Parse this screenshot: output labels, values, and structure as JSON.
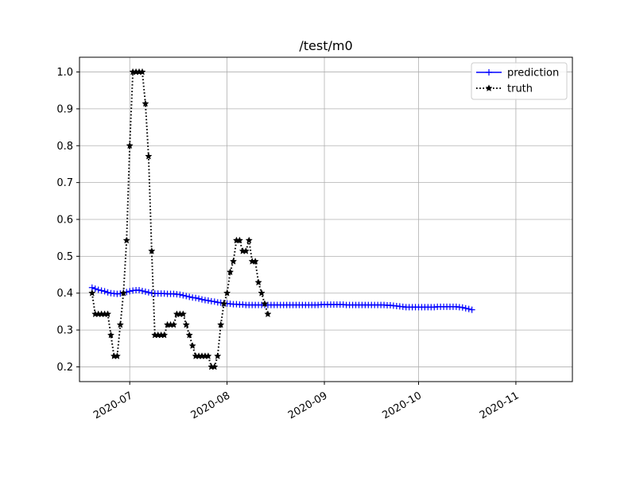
{
  "chart_data": {
    "type": "line",
    "title": "/test/m0",
    "xlabel": "",
    "ylabel": "",
    "grid": true,
    "legend_position": "top-right",
    "x_ticks": [
      "2020-07",
      "2020-08",
      "2020-09",
      "2020-10",
      "2020-11"
    ],
    "y_ticks": [
      "0.2",
      "0.3",
      "0.4",
      "0.5",
      "0.6",
      "0.7",
      "0.8",
      "0.9",
      "1.0"
    ],
    "xlim": [
      "2020-06-15",
      "2020-11-19"
    ],
    "ylim": [
      0.16,
      1.04
    ],
    "series": [
      {
        "name": "prediction",
        "color": "#0000ff",
        "linestyle": "solid",
        "marker": "plus",
        "x_start": "2020-06-19",
        "x_step_days": 1,
        "values": [
          0.415,
          0.412,
          0.409,
          0.407,
          0.405,
          0.402,
          0.4,
          0.399,
          0.398,
          0.399,
          0.401,
          0.403,
          0.405,
          0.407,
          0.408,
          0.408,
          0.406,
          0.404,
          0.402,
          0.4,
          0.399,
          0.399,
          0.399,
          0.399,
          0.398,
          0.398,
          0.398,
          0.397,
          0.396,
          0.394,
          0.392,
          0.39,
          0.388,
          0.387,
          0.385,
          0.383,
          0.381,
          0.38,
          0.378,
          0.377,
          0.375,
          0.374,
          0.373,
          0.372,
          0.371,
          0.37,
          0.37,
          0.369,
          0.369,
          0.368,
          0.368,
          0.368,
          0.368,
          0.368,
          0.368,
          0.368,
          0.368,
          0.368,
          0.368,
          0.368,
          0.368,
          0.368,
          0.368,
          0.368,
          0.368,
          0.368,
          0.368,
          0.368,
          0.368,
          0.368,
          0.368,
          0.368,
          0.368,
          0.369,
          0.369,
          0.369,
          0.369,
          0.369,
          0.369,
          0.369,
          0.369,
          0.368,
          0.368,
          0.368,
          0.368,
          0.368,
          0.368,
          0.368,
          0.368,
          0.368,
          0.368,
          0.368,
          0.368,
          0.368,
          0.367,
          0.367,
          0.366,
          0.365,
          0.364,
          0.363,
          0.362,
          0.362,
          0.362,
          0.362,
          0.362,
          0.362,
          0.362,
          0.362,
          0.362,
          0.362,
          0.363,
          0.363,
          0.363,
          0.363,
          0.363,
          0.363,
          0.363,
          0.362,
          0.361,
          0.359,
          0.357,
          0.355
        ]
      },
      {
        "name": "truth",
        "color": "#000000",
        "linestyle": "dotted",
        "marker": "star",
        "x_start": "2020-06-19",
        "x_step_days": 1,
        "values": [
          0.4,
          0.343,
          0.343,
          0.343,
          0.343,
          0.343,
          0.286,
          0.229,
          0.229,
          0.314,
          0.4,
          0.543,
          0.8,
          1.0,
          1.0,
          1.0,
          1.0,
          0.914,
          0.771,
          0.514,
          0.286,
          0.286,
          0.286,
          0.286,
          0.314,
          0.314,
          0.314,
          0.343,
          0.343,
          0.343,
          0.314,
          0.286,
          0.257,
          0.229,
          0.229,
          0.229,
          0.229,
          0.229,
          0.2,
          0.2,
          0.229,
          0.314,
          0.371,
          0.4,
          0.457,
          0.486,
          0.543,
          0.543,
          0.514,
          0.514,
          0.543,
          0.486,
          0.486,
          0.429,
          0.4,
          0.371,
          0.343
        ]
      }
    ]
  }
}
